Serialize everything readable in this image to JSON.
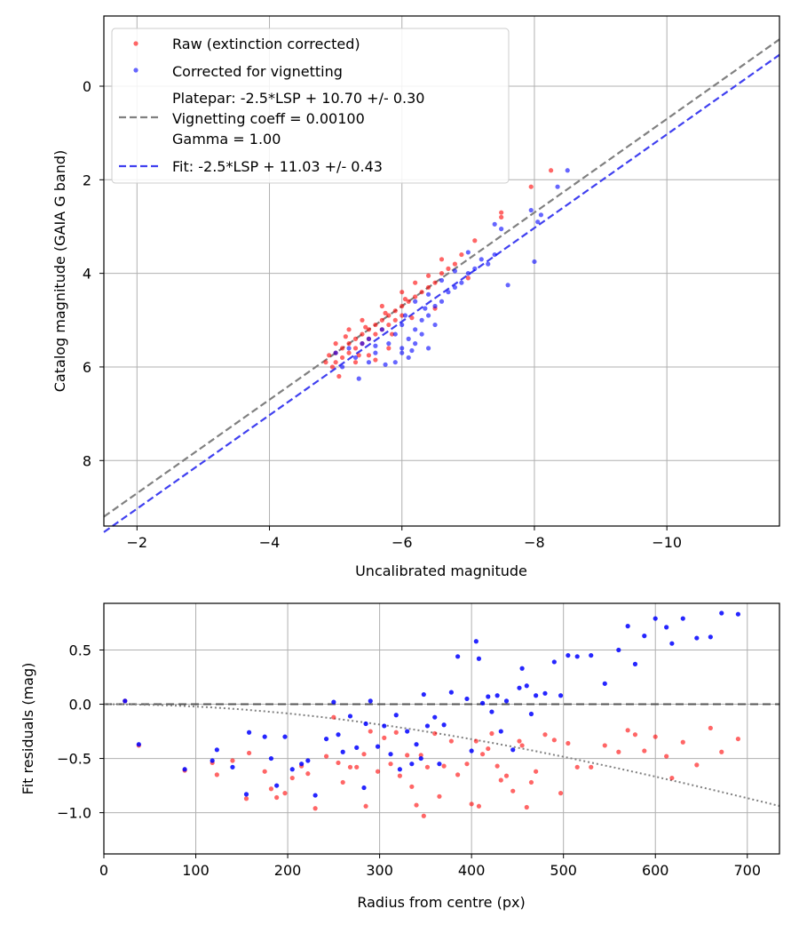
{
  "chart_data": [
    {
      "type": "scatter",
      "xlabel": "Uncalibrated magnitude",
      "ylabel": "Catalog magnitude (GAIA G band)",
      "xlim": [
        -1.5,
        -11.7
      ],
      "ylim": [
        9.4,
        -1.5
      ],
      "x_ticks": [
        -2,
        -4,
        -6,
        -8,
        -10
      ],
      "x_tick_labels": [
        "−2",
        "−4",
        "−6",
        "−8",
        "−10"
      ],
      "y_ticks": [
        0,
        2,
        4,
        6,
        8
      ],
      "y_tick_labels": [
        "0",
        "2",
        "4",
        "6",
        "8"
      ],
      "grid": true,
      "legend_position": "top-left",
      "series": [
        {
          "name": "Raw (extinction corrected)",
          "kind": "scatter",
          "color": "#ff0000"
        },
        {
          "name": "Corrected for vignetting",
          "kind": "scatter",
          "color": "#0000ff"
        }
      ],
      "lines": [
        {
          "name": "platepar",
          "kind": "line",
          "style": "dashed",
          "color": "#808080",
          "slope": 1,
          "intercept": 10.7,
          "legend_lines": [
            "Platepar: -2.5*LSP + 10.70 +/- 0.30",
            "Vignetting coeff = 0.00100",
            "Gamma = 1.00"
          ]
        },
        {
          "name": "fit",
          "kind": "line",
          "style": "dashed",
          "color": "#4040f0",
          "slope": 1,
          "intercept": 11.03,
          "legend_lines": [
            "Fit: -2.5*LSP + 11.03 +/- 0.43"
          ]
        }
      ],
      "raw_points": [
        [
          -4.9,
          5.75
        ],
        [
          -5.0,
          5.7
        ],
        [
          -5.0,
          5.9
        ],
        [
          -5.1,
          5.6
        ],
        [
          -5.1,
          5.8
        ],
        [
          -5.2,
          5.5
        ],
        [
          -5.2,
          5.7
        ],
        [
          -5.3,
          5.4
        ],
        [
          -5.3,
          5.6
        ],
        [
          -5.4,
          5.3
        ],
        [
          -5.4,
          5.5
        ],
        [
          -5.5,
          5.2
        ],
        [
          -5.5,
          5.4
        ],
        [
          -5.6,
          5.1
        ],
        [
          -5.6,
          5.3
        ],
        [
          -5.7,
          5.0
        ],
        [
          -5.7,
          5.2
        ],
        [
          -5.8,
          4.9
        ],
        [
          -5.8,
          5.1
        ],
        [
          -5.9,
          4.8
        ],
        [
          -5.9,
          5.0
        ],
        [
          -6.0,
          4.7
        ],
        [
          -6.0,
          4.9
        ],
        [
          -6.1,
          4.6
        ],
        [
          -6.2,
          4.5
        ],
        [
          -6.3,
          4.4
        ],
        [
          -6.4,
          4.3
        ],
        [
          -6.5,
          4.2
        ],
        [
          -6.6,
          4.0
        ],
        [
          -6.7,
          3.9
        ],
        [
          -6.8,
          3.8
        ],
        [
          -5.0,
          5.5
        ],
        [
          -4.95,
          6.0
        ],
        [
          -5.05,
          6.2
        ],
        [
          -5.3,
          5.9
        ],
        [
          -5.5,
          5.75
        ],
        [
          -5.6,
          5.85
        ],
        [
          -5.8,
          5.6
        ],
        [
          -5.2,
          5.2
        ],
        [
          -5.4,
          5.0
        ],
        [
          -5.7,
          4.7
        ],
        [
          -6.0,
          4.4
        ],
        [
          -6.2,
          4.2
        ],
        [
          -6.4,
          4.05
        ],
        [
          -6.6,
          3.7
        ],
        [
          -6.9,
          3.6
        ],
        [
          -7.1,
          3.3
        ],
        [
          -7.5,
          2.7
        ],
        [
          -7.5,
          2.8
        ],
        [
          -7.95,
          2.15
        ],
        [
          -8.25,
          1.8
        ],
        [
          -5.15,
          5.35
        ],
        [
          -5.45,
          5.15
        ],
        [
          -5.75,
          4.85
        ],
        [
          -6.05,
          4.55
        ],
        [
          -4.85,
          5.9
        ],
        [
          -5.35,
          5.75
        ],
        [
          -5.85,
          5.3
        ],
        [
          -6.15,
          4.95
        ],
        [
          -6.5,
          4.75
        ],
        [
          -7.0,
          4.1
        ]
      ],
      "vign_points": [
        [
          -5.0,
          5.7
        ],
        [
          -5.2,
          5.6
        ],
        [
          -5.3,
          5.8
        ],
        [
          -5.4,
          5.5
        ],
        [
          -5.5,
          5.4
        ],
        [
          -5.6,
          5.7
        ],
        [
          -5.7,
          5.2
        ],
        [
          -5.8,
          5.5
        ],
        [
          -5.9,
          5.3
        ],
        [
          -6.0,
          5.1
        ],
        [
          -6.0,
          5.7
        ],
        [
          -6.1,
          5.4
        ],
        [
          -6.1,
          5.8
        ],
        [
          -6.2,
          5.2
        ],
        [
          -6.2,
          5.5
        ],
        [
          -6.3,
          5.0
        ],
        [
          -6.3,
          5.3
        ],
        [
          -6.4,
          4.9
        ],
        [
          -6.4,
          5.6
        ],
        [
          -6.5,
          4.7
        ],
        [
          -6.5,
          5.1
        ],
        [
          -6.6,
          4.6
        ],
        [
          -6.7,
          4.4
        ],
        [
          -6.8,
          4.3
        ],
        [
          -6.9,
          4.2
        ],
        [
          -7.0,
          4.0
        ],
        [
          -7.1,
          3.9
        ],
        [
          -7.2,
          3.7
        ],
        [
          -7.3,
          3.8
        ],
        [
          -7.4,
          3.6
        ],
        [
          -7.6,
          4.25
        ],
        [
          -5.9,
          5.9
        ],
        [
          -6.0,
          5.6
        ],
        [
          -5.5,
          5.9
        ],
        [
          -5.35,
          6.25
        ],
        [
          -5.1,
          6.0
        ],
        [
          -6.2,
          4.6
        ],
        [
          -6.4,
          4.45
        ],
        [
          -6.6,
          4.15
        ],
        [
          -6.8,
          3.95
        ],
        [
          -7.0,
          3.55
        ],
        [
          -7.4,
          2.95
        ],
        [
          -7.5,
          3.05
        ],
        [
          -8.0,
          3.75
        ],
        [
          -7.95,
          2.65
        ],
        [
          -8.1,
          2.75
        ],
        [
          -8.05,
          2.9
        ],
        [
          -8.5,
          1.8
        ],
        [
          -8.35,
          2.15
        ],
        [
          -6.15,
          5.65
        ],
        [
          -5.75,
          5.95
        ],
        [
          -5.6,
          5.55
        ],
        [
          -6.05,
          4.9
        ],
        [
          -6.35,
          4.75
        ]
      ]
    },
    {
      "type": "scatter",
      "xlabel": "Radius from centre (px)",
      "ylabel": "Fit residuals (mag)",
      "xlim": [
        0,
        735
      ],
      "ylim": [
        -1.38,
        0.93
      ],
      "x_ticks": [
        0,
        100,
        200,
        300,
        400,
        500,
        600,
        700
      ],
      "x_tick_labels": [
        "0",
        "100",
        "200",
        "300",
        "400",
        "500",
        "600",
        "700"
      ],
      "y_ticks": [
        0.5,
        0.0,
        -0.5,
        -1.0
      ],
      "y_tick_labels": [
        "0.5",
        "0.0",
        "−0.5",
        "−1.0"
      ],
      "grid": true,
      "zero_line": 0.0,
      "vignetting_curve": {
        "coeff": 0.001,
        "kind": "dotted",
        "color": "#808080"
      },
      "series": [
        {
          "name": "raw residuals",
          "color": "#ff0000",
          "points": [
            [
              23,
              0.03
            ],
            [
              38,
              -0.38
            ],
            [
              88,
              -0.61
            ],
            [
              118,
              -0.54
            ],
            [
              123,
              -0.65
            ],
            [
              140,
              -0.52
            ],
            [
              155,
              -0.87
            ],
            [
              158,
              -0.45
            ],
            [
              175,
              -0.62
            ],
            [
              182,
              -0.78
            ],
            [
              188,
              -0.86
            ],
            [
              197,
              -0.82
            ],
            [
              205,
              -0.68
            ],
            [
              215,
              -0.57
            ],
            [
              222,
              -0.64
            ],
            [
              230,
              -0.96
            ],
            [
              242,
              -0.48
            ],
            [
              250,
              -0.12
            ],
            [
              255,
              -0.54
            ],
            [
              260,
              -0.72
            ],
            [
              268,
              -0.58
            ],
            [
              275,
              -0.58
            ],
            [
              283,
              -0.46
            ],
            [
              285,
              -0.94
            ],
            [
              290,
              -0.25
            ],
            [
              298,
              -0.62
            ],
            [
              305,
              -0.31
            ],
            [
              312,
              -0.55
            ],
            [
              318,
              -0.26
            ],
            [
              322,
              -0.66
            ],
            [
              330,
              -0.47
            ],
            [
              335,
              -0.76
            ],
            [
              340,
              -0.93
            ],
            [
              345,
              -0.47
            ],
            [
              348,
              -1.03
            ],
            [
              352,
              -0.58
            ],
            [
              360,
              -0.27
            ],
            [
              365,
              -0.85
            ],
            [
              370,
              -0.57
            ],
            [
              378,
              -0.34
            ],
            [
              385,
              -0.65
            ],
            [
              395,
              -0.55
            ],
            [
              400,
              -0.92
            ],
            [
              405,
              -0.34
            ],
            [
              408,
              -0.94
            ],
            [
              412,
              -0.46
            ],
            [
              418,
              -0.41
            ],
            [
              422,
              -0.27
            ],
            [
              428,
              -0.57
            ],
            [
              432,
              -0.7
            ],
            [
              438,
              -0.66
            ],
            [
              445,
              -0.8
            ],
            [
              452,
              -0.34
            ],
            [
              455,
              -0.38
            ],
            [
              460,
              -0.95
            ],
            [
              465,
              -0.72
            ],
            [
              470,
              -0.62
            ],
            [
              480,
              -0.28
            ],
            [
              490,
              -0.33
            ],
            [
              497,
              -0.82
            ],
            [
              505,
              -0.36
            ],
            [
              515,
              -0.58
            ],
            [
              530,
              -0.58
            ],
            [
              545,
              -0.38
            ],
            [
              560,
              -0.44
            ],
            [
              570,
              -0.24
            ],
            [
              578,
              -0.28
            ],
            [
              588,
              -0.43
            ],
            [
              600,
              -0.3
            ],
            [
              612,
              -0.48
            ],
            [
              618,
              -0.68
            ],
            [
              630,
              -0.35
            ],
            [
              645,
              -0.56
            ],
            [
              660,
              -0.22
            ],
            [
              672,
              -0.44
            ],
            [
              690,
              -0.32
            ]
          ]
        },
        {
          "name": "corrected residuals",
          "color": "#0000ff",
          "points": [
            [
              23,
              0.03
            ],
            [
              38,
              -0.37
            ],
            [
              88,
              -0.6
            ],
            [
              118,
              -0.52
            ],
            [
              123,
              -0.42
            ],
            [
              140,
              -0.58
            ],
            [
              155,
              -0.83
            ],
            [
              158,
              -0.26
            ],
            [
              175,
              -0.3
            ],
            [
              182,
              -0.5
            ],
            [
              188,
              -0.75
            ],
            [
              197,
              -0.3
            ],
            [
              205,
              -0.6
            ],
            [
              215,
              -0.55
            ],
            [
              222,
              -0.52
            ],
            [
              230,
              -0.84
            ],
            [
              242,
              -0.32
            ],
            [
              250,
              0.02
            ],
            [
              255,
              -0.28
            ],
            [
              260,
              -0.44
            ],
            [
              268,
              -0.11
            ],
            [
              275,
              -0.4
            ],
            [
              283,
              -0.77
            ],
            [
              285,
              -0.18
            ],
            [
              290,
              0.03
            ],
            [
              298,
              -0.39
            ],
            [
              305,
              -0.2
            ],
            [
              312,
              -0.46
            ],
            [
              318,
              -0.1
            ],
            [
              322,
              -0.6
            ],
            [
              330,
              -0.25
            ],
            [
              335,
              -0.55
            ],
            [
              340,
              -0.37
            ],
            [
              345,
              -0.5
            ],
            [
              348,
              0.09
            ],
            [
              352,
              -0.2
            ],
            [
              360,
              -0.12
            ],
            [
              365,
              -0.55
            ],
            [
              370,
              -0.19
            ],
            [
              378,
              0.11
            ],
            [
              385,
              0.44
            ],
            [
              395,
              0.05
            ],
            [
              400,
              -0.43
            ],
            [
              405,
              0.58
            ],
            [
              408,
              0.42
            ],
            [
              412,
              0.01
            ],
            [
              418,
              0.07
            ],
            [
              422,
              -0.07
            ],
            [
              428,
              0.08
            ],
            [
              432,
              -0.25
            ],
            [
              438,
              0.03
            ],
            [
              445,
              -0.42
            ],
            [
              452,
              0.15
            ],
            [
              455,
              0.33
            ],
            [
              460,
              0.17
            ],
            [
              465,
              -0.09
            ],
            [
              470,
              0.08
            ],
            [
              480,
              0.1
            ],
            [
              490,
              0.39
            ],
            [
              497,
              0.08
            ],
            [
              505,
              0.45
            ],
            [
              515,
              0.44
            ],
            [
              530,
              0.45
            ],
            [
              545,
              0.19
            ],
            [
              560,
              0.5
            ],
            [
              570,
              0.72
            ],
            [
              578,
              0.37
            ],
            [
              588,
              0.63
            ],
            [
              600,
              0.79
            ],
            [
              612,
              0.71
            ],
            [
              618,
              0.56
            ],
            [
              630,
              0.79
            ],
            [
              645,
              0.61
            ],
            [
              660,
              0.62
            ],
            [
              672,
              0.84
            ],
            [
              690,
              0.83
            ]
          ]
        }
      ]
    }
  ]
}
